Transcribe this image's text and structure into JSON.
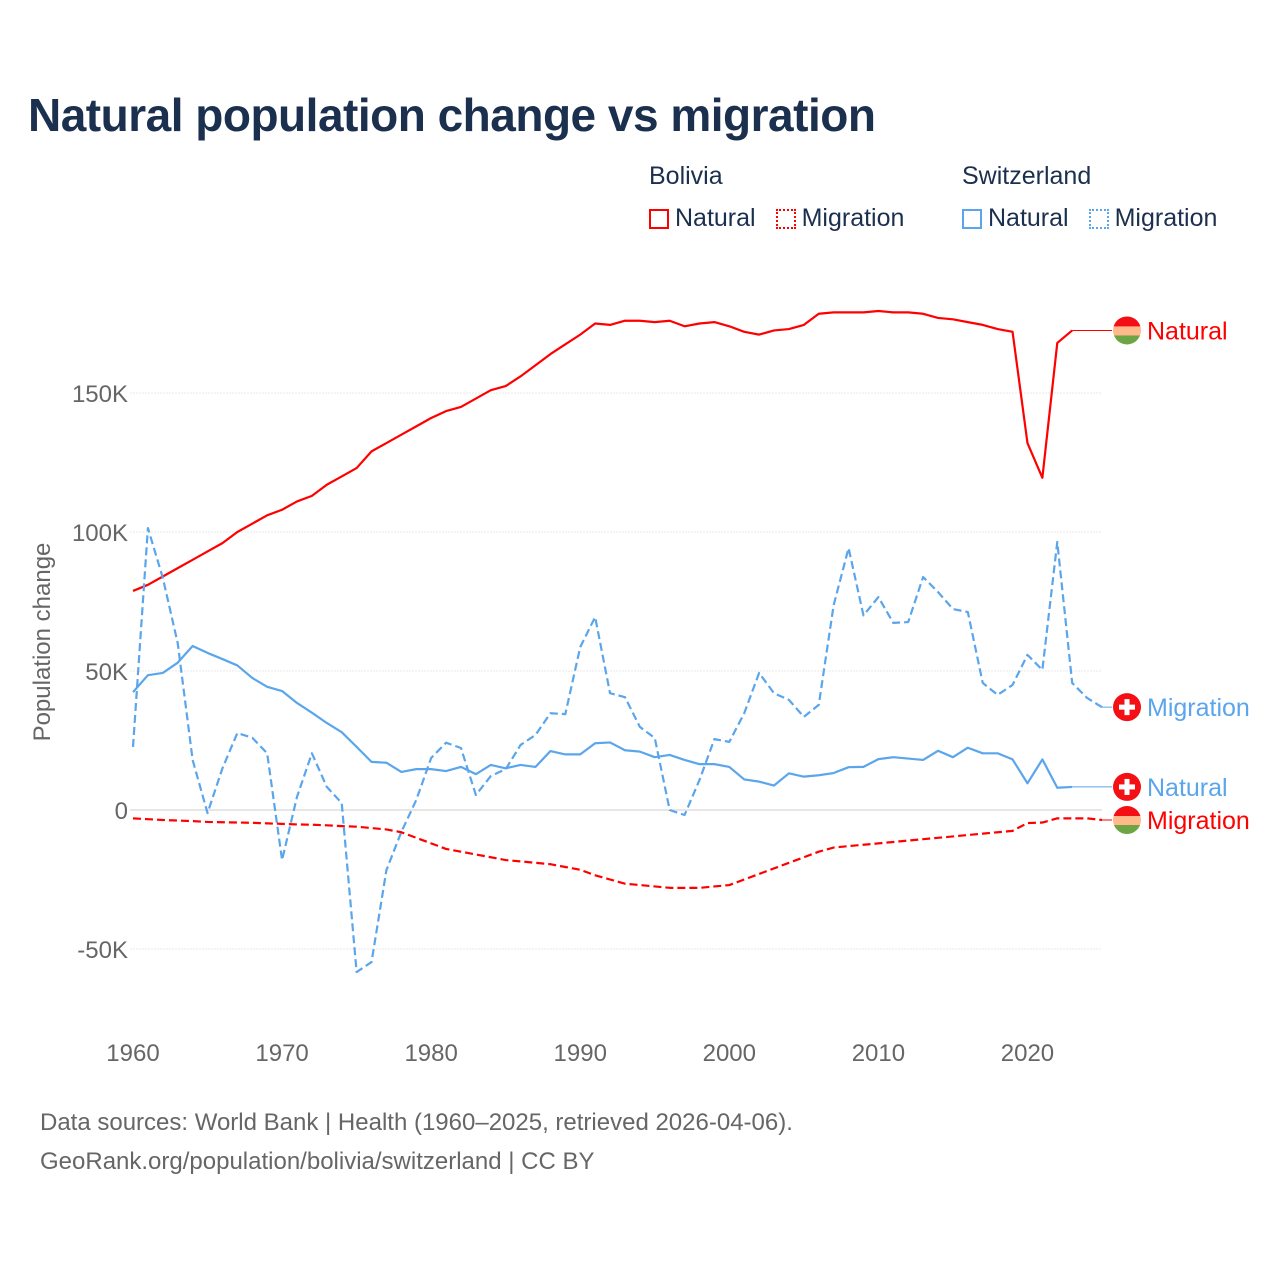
{
  "chart_data": {
    "type": "line",
    "title": "Natural population change vs migration",
    "xlabel": "",
    "ylabel": "Population change",
    "xlim": [
      1960,
      2025
    ],
    "ylim": [
      -65000,
      190000
    ],
    "x_ticks": [
      1960,
      1970,
      1980,
      1990,
      2000,
      2010,
      2020
    ],
    "x_tick_labels": [
      "1960",
      "1970",
      "1980",
      "1990",
      "2000",
      "2010",
      "2020"
    ],
    "y_ticks": [
      -50000,
      0,
      50000,
      100000,
      150000
    ],
    "y_tick_labels": [
      "-50K",
      "0",
      "50K",
      "100K",
      "150K"
    ],
    "grid": true,
    "legend": {
      "placement": "top-right",
      "groups": [
        {
          "name": "Bolivia",
          "items": [
            "Natural",
            "Migration"
          ]
        },
        {
          "name": "Switzerland",
          "items": [
            "Natural",
            "Migration"
          ]
        }
      ]
    },
    "series": [
      {
        "name": "Natural",
        "country": "Bolivia",
        "color": "#ff0000",
        "dash": false,
        "flag": "bolivia-flag",
        "x_start": 1960,
        "values": [
          78800,
          81000,
          84000,
          87000,
          90000,
          93000,
          96000,
          100000,
          103000,
          106000,
          108000,
          111000,
          113000,
          117000,
          120000,
          123000,
          129000,
          132000,
          135000,
          138000,
          141000,
          143500,
          145000,
          148000,
          151000,
          152500,
          156000,
          160000,
          164000,
          167500,
          171000,
          175000,
          174500,
          176000,
          176000,
          175500,
          176000,
          174000,
          175000,
          175500,
          174000,
          172000,
          171000,
          172500,
          173000,
          174500,
          178500,
          179000,
          179000,
          179000,
          179500,
          179000,
          179000,
          178500,
          177000,
          176500,
          175500,
          174500,
          173000,
          172000,
          132000,
          119500,
          168000,
          172500
        ]
      },
      {
        "name": "Migration",
        "country": "Switzerland",
        "color": "#5aa5ec",
        "dash": true,
        "flag": "switzerland-flag",
        "x_start": 1960,
        "values": [
          22700,
          101400,
          83500,
          60000,
          18000,
          -1100,
          15000,
          27700,
          26000,
          20400,
          -18000,
          4700,
          20400,
          8300,
          2500,
          -58300,
          -54700,
          -21600,
          -7900,
          3600,
          18700,
          24200,
          22300,
          5400,
          12200,
          14700,
          23400,
          27000,
          34800,
          34500,
          58600,
          69400,
          42000,
          40600,
          29900,
          25900,
          0,
          -1800,
          10800,
          25500,
          24500,
          34800,
          49300,
          42000,
          39600,
          33500,
          37800,
          73700,
          94200,
          70000,
          76600,
          67300,
          67600,
          83800,
          78400,
          72300,
          71200,
          45700,
          41400,
          45000,
          55800,
          50400,
          96400,
          45700,
          40300,
          37000
        ]
      },
      {
        "name": "Natural",
        "country": "Switzerland",
        "color": "#5aa5ec",
        "dash": false,
        "flag": "switzerland-flag",
        "x_start": 1960,
        "values": [
          42400,
          48500,
          49300,
          53000,
          59000,
          56500,
          54300,
          52000,
          47500,
          44300,
          42800,
          38500,
          35000,
          31300,
          28000,
          22700,
          17300,
          17000,
          13700,
          14700,
          14700,
          14000,
          15500,
          12900,
          16200,
          15000,
          16200,
          15500,
          21200,
          20000,
          20000,
          24000,
          24300,
          21500,
          21000,
          19000,
          19800,
          18000,
          16500,
          16500,
          15500,
          11000,
          10200,
          8800,
          13200,
          12000,
          12500,
          13300,
          15400,
          15500,
          18300,
          19000,
          18500,
          18000,
          21300,
          19000,
          22400,
          20400,
          20400,
          18200,
          9600,
          18200,
          8000,
          8300
        ]
      },
      {
        "name": "Migration",
        "country": "Bolivia",
        "color": "#ff0000",
        "dash": true,
        "flag": "bolivia-flag",
        "x_start": 1960,
        "values": [
          -3000,
          -3300,
          -3600,
          -3800,
          -4000,
          -4300,
          -4400,
          -4500,
          -4600,
          -4800,
          -5000,
          -5200,
          -5300,
          -5500,
          -5800,
          -6000,
          -6500,
          -7000,
          -8000,
          -10000,
          -12000,
          -14000,
          -15000,
          -16000,
          -17000,
          -18000,
          -18500,
          -19000,
          -19500,
          -20500,
          -21500,
          -23500,
          -25000,
          -26500,
          -27000,
          -27500,
          -28000,
          -28000,
          -28000,
          -27500,
          -27000,
          -25000,
          -23000,
          -21000,
          -19000,
          -17000,
          -15000,
          -13500,
          -13000,
          -12500,
          -12000,
          -11500,
          -11000,
          -10500,
          -10000,
          -9500,
          -9000,
          -8500,
          -8000,
          -7500,
          -4700,
          -4500,
          -3000,
          -3000,
          -3000,
          -3600
        ]
      }
    ]
  },
  "legend": {
    "bolivia": {
      "group": "Bolivia",
      "natural": "Natural",
      "migration": "Migration"
    },
    "switzerland": {
      "group": "Switzerland",
      "natural": "Natural",
      "migration": "Migration"
    }
  },
  "colors": {
    "bolivia": "#ff0000",
    "switzerland": "#5aa5ec",
    "title": "#1b2f4e"
  },
  "footer": {
    "line1": "Data sources: World Bank | Health (1960–2025, retrieved 2026-04-06).",
    "line2": "GeoRank.org/population/bolivia/switzerland | CC BY"
  }
}
